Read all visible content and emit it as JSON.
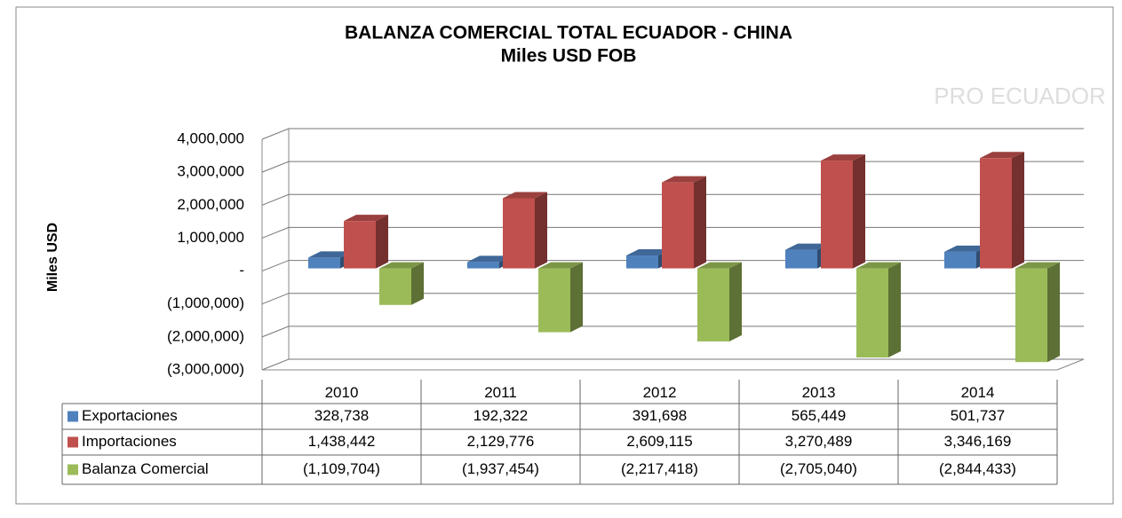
{
  "chart_data": {
    "type": "bar3d",
    "title": "BALANZA COMERCIAL TOTAL ECUADOR - CHINA",
    "subtitle": "Miles USD FOB",
    "y_label": "Miles USD",
    "watermark": "PRO ECUADOR",
    "categories": [
      "2010",
      "2011",
      "2012",
      "2013",
      "2014"
    ],
    "series": [
      {
        "name": "Exportaciones",
        "color": "#4f81bd",
        "values": [
          328738,
          192322,
          391698,
          565449,
          501737
        ],
        "value_labels": [
          "328,738",
          "192,322",
          "391,698",
          "565,449",
          "501,737"
        ]
      },
      {
        "name": "Importaciones",
        "color": "#c0504d",
        "values": [
          1438442,
          2129776,
          2609115,
          3270489,
          3346169
        ],
        "value_labels": [
          "1,438,442",
          "2,129,776",
          "2,609,115",
          "3,270,489",
          "3,346,169"
        ]
      },
      {
        "name": "Balanza Comercial",
        "color": "#9bbb59",
        "values": [
          -1109704,
          -1937454,
          -2217418,
          -2705040,
          -2844433
        ],
        "value_labels": [
          "(1,109,704)",
          "(1,937,454)",
          "(2,217,418)",
          "(2,705,040)",
          "(2,844,433)"
        ]
      }
    ],
    "ylim": [
      -3000000,
      4000000
    ],
    "yticks": [
      {
        "value": 4000000,
        "label": "4,000,000"
      },
      {
        "value": 3000000,
        "label": "3,000,000"
      },
      {
        "value": 2000000,
        "label": "2,000,000"
      },
      {
        "value": 1000000,
        "label": "1,000,000"
      },
      {
        "value": 0,
        "label": "-"
      },
      {
        "value": -1000000,
        "label": "(1,000,000)"
      },
      {
        "value": -2000000,
        "label": "(2,000,000)"
      },
      {
        "value": -3000000,
        "label": "(3,000,000)"
      }
    ],
    "grid": true
  }
}
